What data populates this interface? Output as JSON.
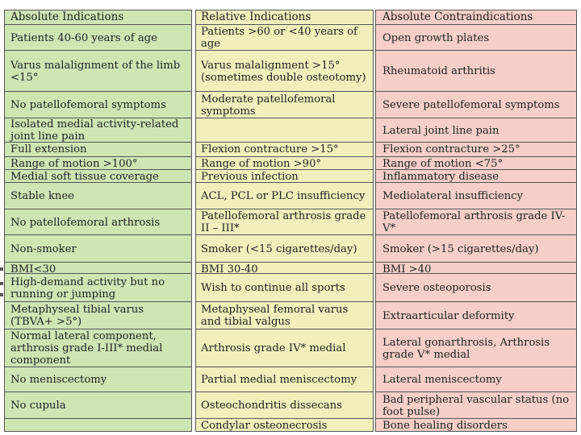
{
  "table": {
    "absolute_indications": {
      "header": "Absolute Indications",
      "rows": [
        "Patients 40-60 years of age",
        "Varus malalignment of the limb <15°",
        "No patellofemoral symptoms",
        "Isolated medial activity-related joint line pain",
        "Full extension",
        "Range of motion >100°",
        "Medial soft tissue coverage",
        "Stable knee",
        "No patellofemoral arthrosis",
        "Non-smoker",
        "BMI<30",
        "High-demand activity but no running or jumping",
        "Metaphyseal tibial varus (TBVA+ >5°)",
        "Normal lateral component, arthrosis grade I-III* medial component",
        "No meniscectomy",
        "No cupula",
        ""
      ]
    },
    "relative_indications": {
      "header": "Relative Indications",
      "rows": [
        "Patients >60 or <40 years of age",
        "Varus malalignment >15° (sometimes double osteotomy)",
        "Moderate patellofemoral symptoms",
        "",
        "Flexion contracture >15°",
        "Range of motion >90°",
        "Previous infection",
        "ACL, PCL or PLC insufficiency",
        "Patellofemoral arthrosis grade II – III*",
        "Smoker (<15 cigarettes/day)",
        "BMI 30-40",
        "Wish to continue all sports",
        "Metaphyseal femoral varus and tibial valgus",
        "Arthrosis grade IV* medial",
        "Partial medial meniscectomy",
        "Osteochondritis dissecans",
        "Condylar osteonecrosis"
      ]
    },
    "absolute_contraindications": {
      "header": "Absolute Contraindications",
      "rows": [
        "Open growth plates",
        "Rheumatoid arthritis",
        "Severe patellofemoral symptoms",
        "Lateral joint line pain",
        "Flexion contracture >25°",
        "Range of motion <75°",
        "Inflammatory disease",
        "Mediolateral insufficiency",
        "Patellofemoral arthrosis grade IV-V*",
        "Smoker (>15 cigarettes/day)",
        "BMI >40",
        "Severe osteoporosis",
        "Extraarticular deformity",
        "Lateral gonarthrosis, Arthrosis grade V* medial",
        "Lateral meniscectomy",
        "Bad peripheral vascular status (no foot pulse)",
        "Bone healing disorders"
      ]
    }
  }
}
